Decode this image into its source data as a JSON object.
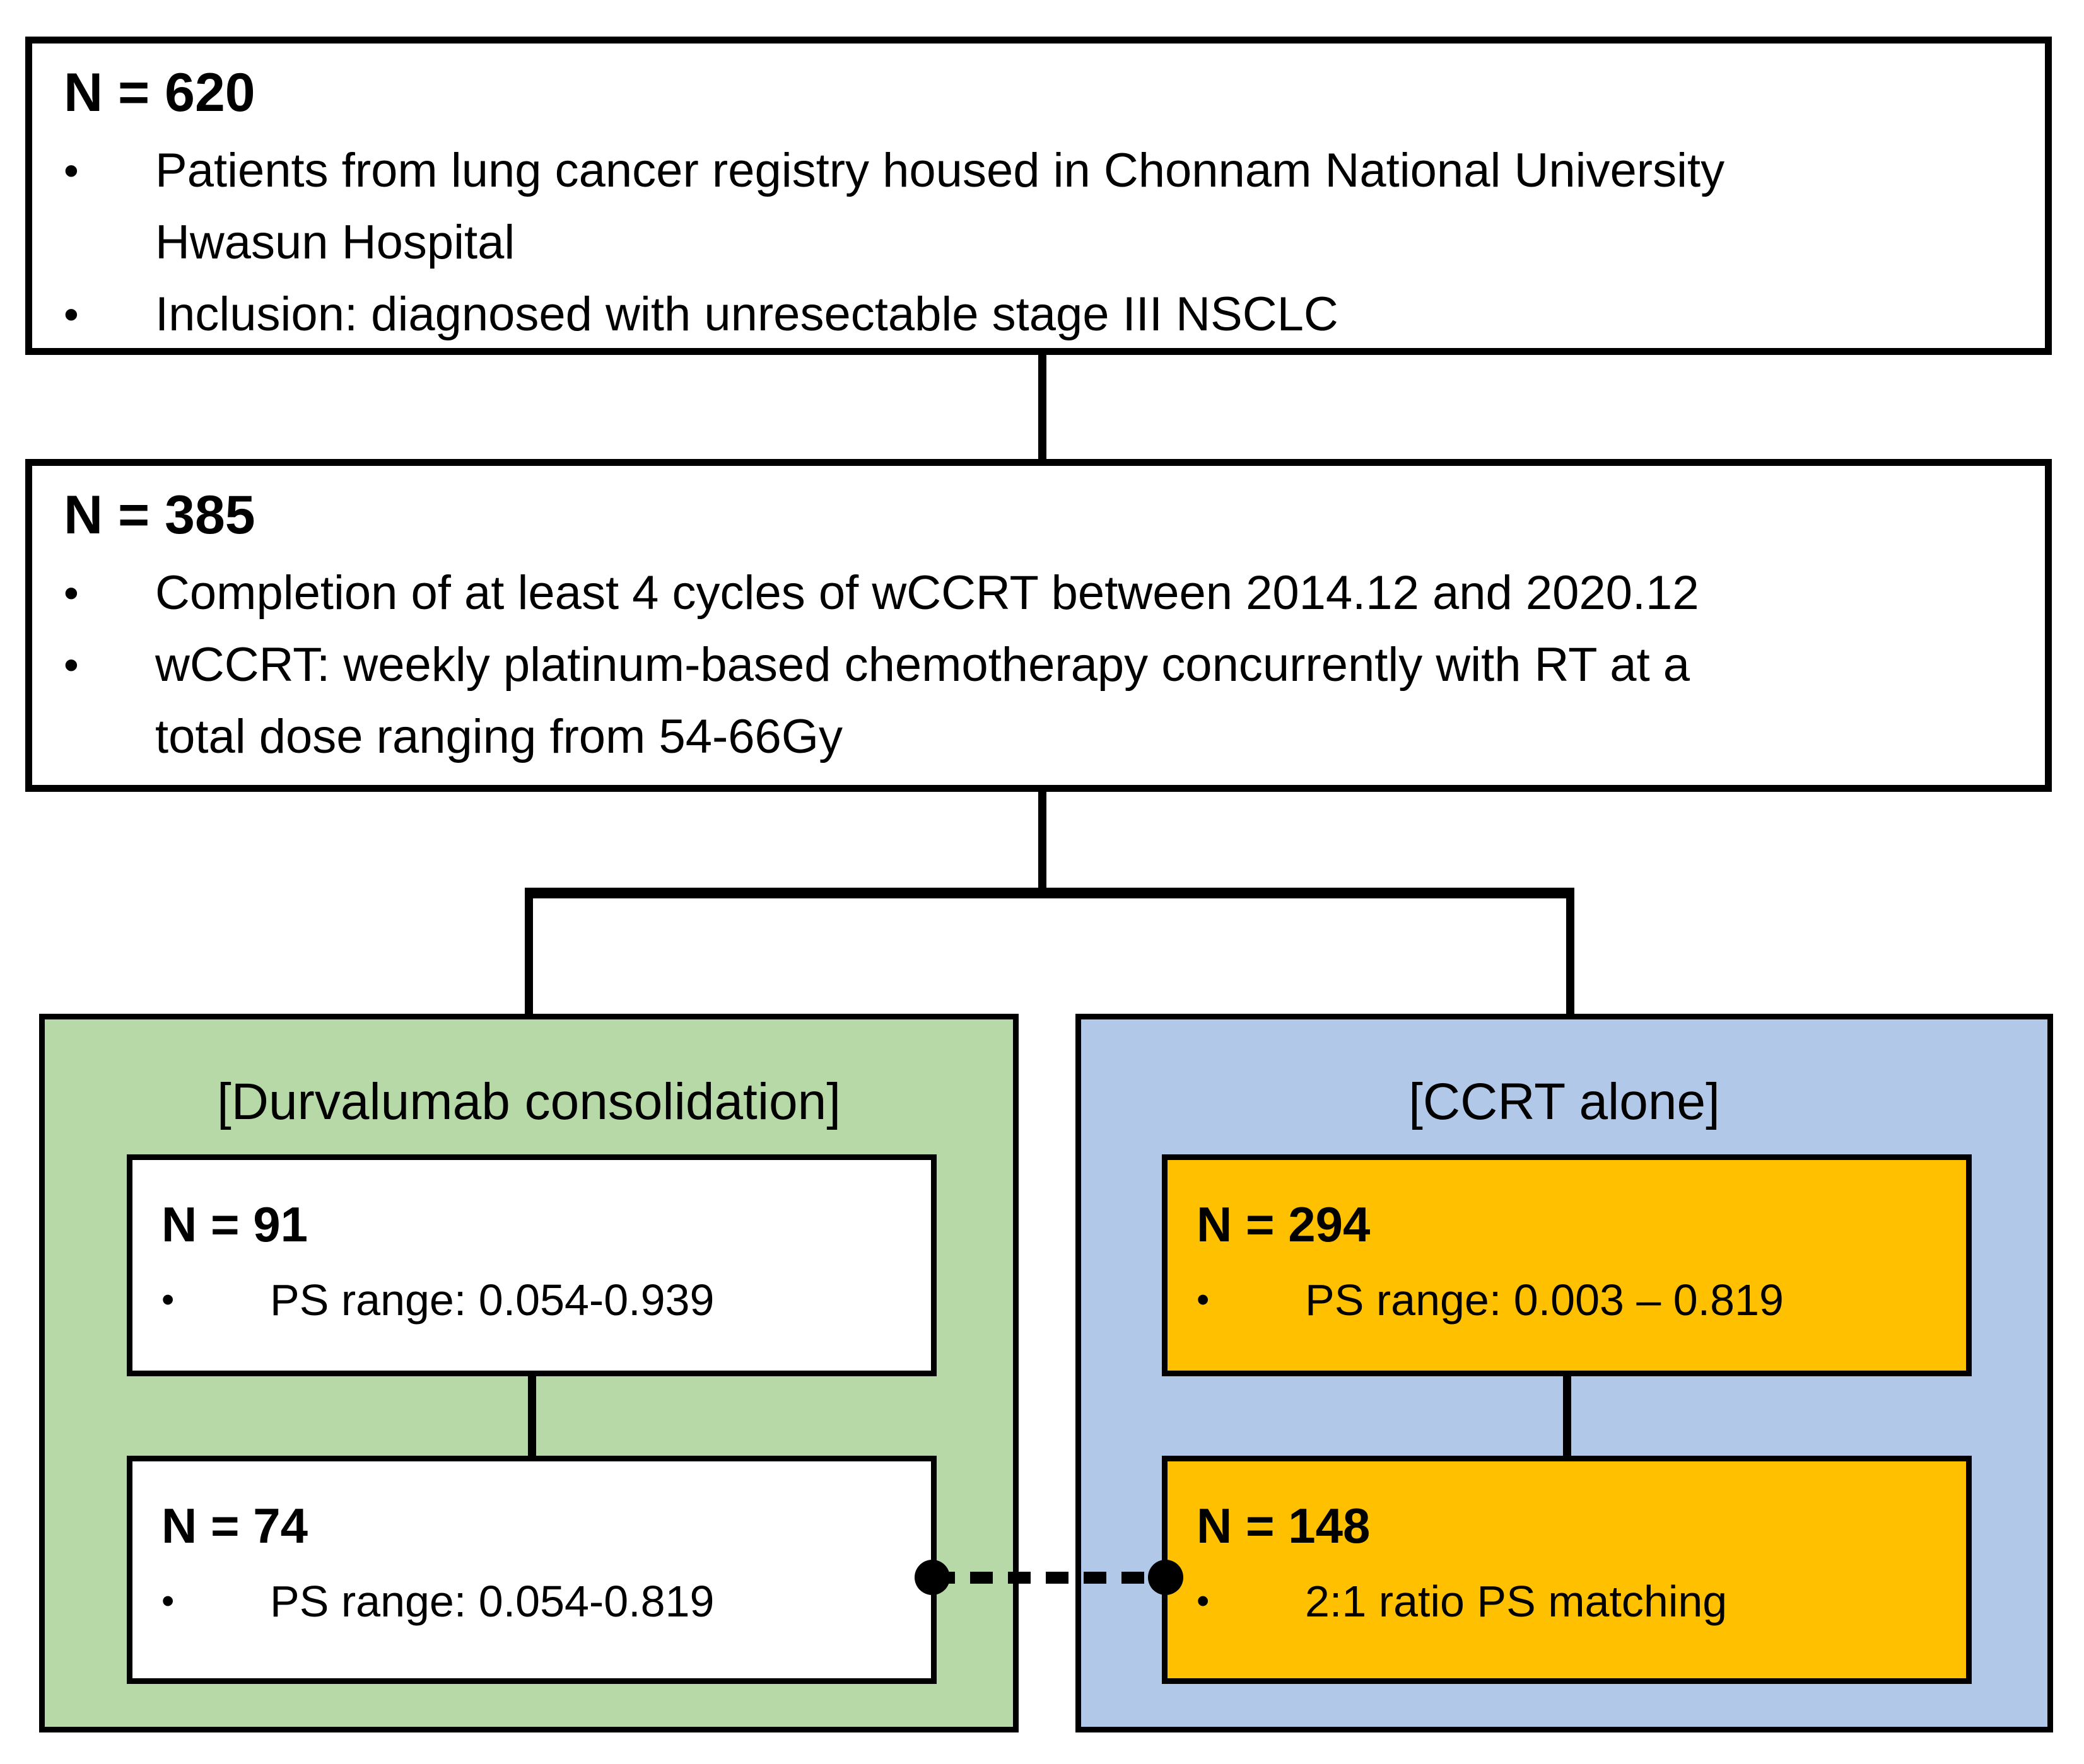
{
  "bullet_char": "•",
  "colors": {
    "left_panel_bg": "#b7d9a8",
    "right_panel_bg": "#b2c8e8",
    "highlight_box_bg": "#ffc000",
    "plain_box_bg": "#ffffff",
    "line": "#000000"
  },
  "cohort_boxes": {
    "b620": {
      "title": "N = 620",
      "bullets": [
        "Patients from lung cancer registry housed in Chonnam National University\nHwasun Hospital",
        "Inclusion: diagnosed with unresectable stage III NSCLC"
      ]
    },
    "b385": {
      "title": "N = 385",
      "bullets": [
        "Completion of at least 4 cycles of wCCRT between 2014.12 and 2020.12",
        "wCCRT: weekly platinum-based chemotherapy concurrently with RT at a\ntotal dose ranging from 54-66Gy"
      ]
    }
  },
  "left_panel": {
    "title": "[Durvalumab consolidation]",
    "box_top": {
      "title": "N = 91",
      "bullets": [
        "PS range: 0.054-0.939"
      ]
    },
    "box_bottom": {
      "title": "N = 74",
      "bullets": [
        "PS range: 0.054-0.819"
      ]
    }
  },
  "right_panel": {
    "title": "[CCRT alone]",
    "box_top": {
      "title": "N = 294",
      "bullets": [
        "PS range: 0.003 – 0.819"
      ]
    },
    "box_bottom": {
      "title": "N = 148",
      "bullets": [
        "2:1 ratio PS matching"
      ]
    }
  }
}
